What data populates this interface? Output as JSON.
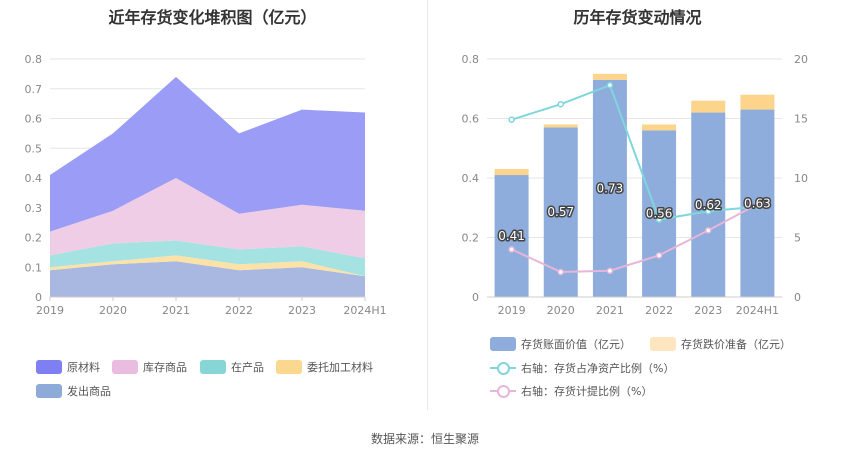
{
  "left": {
    "title": "近年存货变化堆积图（亿元）",
    "chart_data": {
      "type": "area",
      "stacked": true,
      "categories": [
        "2019",
        "2020",
        "2021",
        "2022",
        "2023",
        "2024H1"
      ],
      "ylim": [
        0,
        0.8
      ],
      "yticks": [
        "0",
        "0.1",
        "0.2",
        "0.3",
        "0.4",
        "0.5",
        "0.6",
        "0.7",
        "0.8"
      ],
      "grid": true,
      "legend_position": "bottom",
      "series": [
        {
          "name": "发出商品",
          "color": "#a8b8e0",
          "values": [
            0.09,
            0.11,
            0.12,
            0.09,
            0.1,
            0.07
          ]
        },
        {
          "name": "委托加工材料",
          "color": "#fde2a8",
          "values": [
            0.01,
            0.01,
            0.02,
            0.02,
            0.02,
            0.0
          ]
        },
        {
          "name": "在产品",
          "color": "#a5e2e2",
          "values": [
            0.04,
            0.06,
            0.05,
            0.05,
            0.05,
            0.06
          ]
        },
        {
          "name": "库存商品",
          "color": "#f0cde6",
          "values": [
            0.08,
            0.11,
            0.21,
            0.12,
            0.14,
            0.16
          ]
        },
        {
          "name": "原材料",
          "color": "#9a9cf5",
          "values": [
            0.19,
            0.26,
            0.34,
            0.27,
            0.32,
            0.33
          ]
        }
      ]
    },
    "legend": [
      {
        "label": "原材料",
        "color": "#7e7ff2"
      },
      {
        "label": "库存商品",
        "color": "#e9bce0"
      },
      {
        "label": "在产品",
        "color": "#86d6d8"
      },
      {
        "label": "委托加工材料",
        "color": "#fcd78f"
      },
      {
        "label": "发出商品",
        "color": "#8eaad8"
      }
    ]
  },
  "right": {
    "title": "历年存货变动情况",
    "chart_data": {
      "type": "bar",
      "stacked": true,
      "categories": [
        "2019",
        "2020",
        "2021",
        "2022",
        "2023",
        "2024H1"
      ],
      "ylim": [
        0,
        0.8
      ],
      "yticks": [
        "0",
        "0.2",
        "0.4",
        "0.6",
        "0.8"
      ],
      "y2lim": [
        0,
        20
      ],
      "y2ticks": [
        "0",
        "5",
        "10",
        "15",
        "20"
      ],
      "legend_position": "bottom",
      "series": [
        {
          "name": "存货账面价值（亿元）",
          "color": "#8eaddc",
          "values": [
            0.41,
            0.57,
            0.73,
            0.56,
            0.62,
            0.63
          ],
          "labels": [
            "0.41",
            "0.57",
            "0.73",
            "0.56",
            "0.62",
            "0.63"
          ]
        },
        {
          "name": "存货跌价准备（亿元）",
          "color": "#fcd48c",
          "values": [
            0.02,
            0.01,
            0.02,
            0.02,
            0.04,
            0.05
          ]
        }
      ],
      "lines": [
        {
          "name": "右轴：存货占净资产比例（%）",
          "color": "#7fd6dc",
          "values": [
            14.9,
            16.2,
            17.8,
            6.5,
            7.2,
            7.6
          ]
        },
        {
          "name": "右轴：存货计提比例（%）",
          "color": "#e8b6d8",
          "values": [
            4.0,
            2.1,
            2.2,
            3.5,
            5.6,
            7.8
          ]
        }
      ]
    },
    "legend": [
      {
        "label": "存货账面价值（亿元）",
        "color": "#8eaddc",
        "kind": "box"
      },
      {
        "label": "存货跌价准备（亿元）",
        "color": "#fde6bf",
        "kind": "box"
      },
      {
        "label": "右轴：存货占净资产比例（%）",
        "color": "#7fd6dc",
        "kind": "line"
      },
      {
        "label": "右轴：存货计提比例（%）",
        "color": "#e8b6d8",
        "kind": "line"
      }
    ]
  },
  "source": "数据来源：恒生聚源"
}
